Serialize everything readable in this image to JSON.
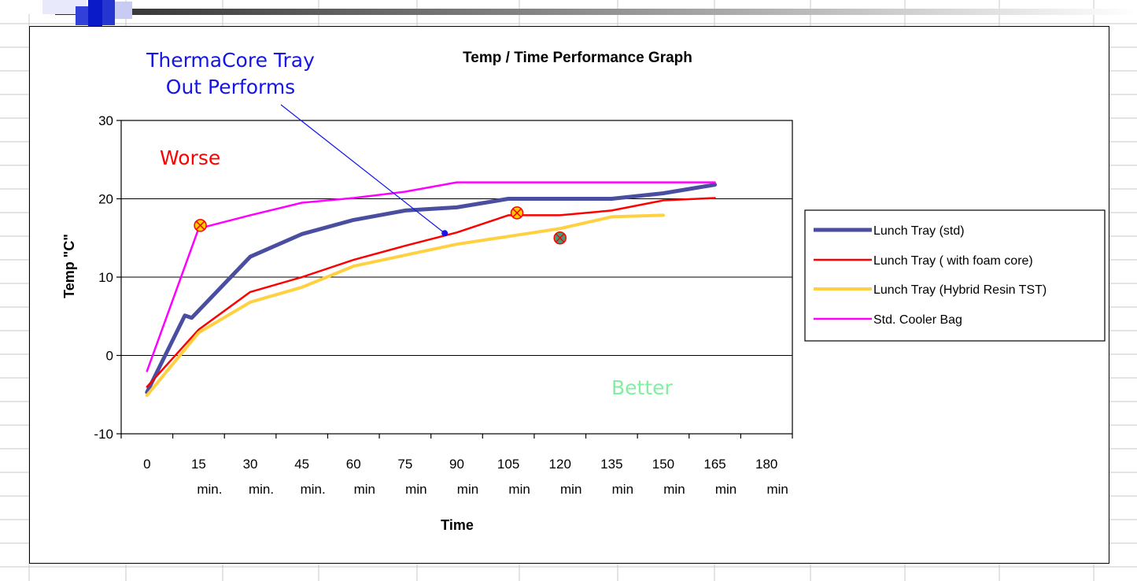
{
  "chart_data": {
    "type": "line",
    "title": "Temp / Time Performance Graph",
    "xlabel": "Time",
    "ylabel": "Temp \"C\"",
    "ylim": [
      -10,
      30
    ],
    "yticks": [
      -10,
      0,
      10,
      20,
      30
    ],
    "grid": "horizontal major gridlines",
    "legend_position": "right",
    "x": [
      0,
      15,
      30,
      45,
      60,
      75,
      90,
      105,
      120,
      135,
      150,
      165,
      180
    ],
    "categories": [
      {
        "line1": "0",
        "line2": ""
      },
      {
        "line1": "15",
        "line2": "min."
      },
      {
        "line1": "30",
        "line2": "min."
      },
      {
        "line1": "45",
        "line2": "min."
      },
      {
        "line1": "60",
        "line2": "min"
      },
      {
        "line1": "75",
        "line2": "min"
      },
      {
        "line1": "90",
        "line2": "min"
      },
      {
        "line1": "105",
        "line2": "min"
      },
      {
        "line1": "120",
        "line2": "min"
      },
      {
        "line1": "135",
        "line2": "min"
      },
      {
        "line1": "150",
        "line2": "min"
      },
      {
        "line1": "165",
        "line2": "min"
      },
      {
        "line1": "180",
        "line2": "min"
      }
    ],
    "series": [
      {
        "name": "Lunch Tray (std)",
        "color": "#4a4ea0",
        "points": [
          [
            0,
            -4.7
          ],
          [
            11,
            5.1
          ],
          [
            13,
            4.8
          ],
          [
            30,
            12.6
          ],
          [
            45,
            15.5
          ],
          [
            60,
            17.3
          ],
          [
            75,
            18.5
          ],
          [
            90,
            18.9
          ],
          [
            105,
            20.0
          ],
          [
            120,
            20.0
          ],
          [
            135,
            20.0
          ],
          [
            150,
            20.7
          ],
          [
            165,
            21.8
          ]
        ]
      },
      {
        "name": "Lunch Tray ( with foam core)",
        "color": "#ff0000",
        "points": [
          [
            0,
            -4.0
          ],
          [
            15,
            3.3
          ],
          [
            30,
            8.1
          ],
          [
            45,
            10.0
          ],
          [
            60,
            12.2
          ],
          [
            75,
            14.0
          ],
          [
            90,
            15.7
          ],
          [
            105,
            17.9
          ],
          [
            120,
            17.9
          ],
          [
            135,
            18.5
          ],
          [
            150,
            19.8
          ],
          [
            165,
            20.1
          ]
        ]
      },
      {
        "name": "Lunch Tray (Hybrid Resin TST)",
        "color": "#ffd040",
        "points": [
          [
            0,
            -5.1
          ],
          [
            15,
            2.9
          ],
          [
            30,
            6.8
          ],
          [
            45,
            8.7
          ],
          [
            60,
            11.4
          ],
          [
            75,
            12.8
          ],
          [
            90,
            14.2
          ],
          [
            105,
            15.2
          ],
          [
            120,
            16.2
          ],
          [
            135,
            17.7
          ],
          [
            150,
            17.9
          ]
        ]
      },
      {
        "name": "Std. Cooler Bag",
        "color": "#ff00ff",
        "points": [
          [
            0,
            -2.0
          ],
          [
            15,
            16.2
          ],
          [
            30,
            17.9
          ],
          [
            45,
            19.5
          ],
          [
            60,
            20.1
          ],
          [
            75,
            20.9
          ],
          [
            90,
            22.1
          ],
          [
            105,
            22.1
          ],
          [
            120,
            22.1
          ],
          [
            135,
            22.1
          ],
          [
            150,
            22.1
          ],
          [
            165,
            22.1
          ]
        ]
      }
    ],
    "markers": [
      {
        "x": 15.5,
        "y": 16.6,
        "fill": "#ffcc00",
        "stroke": "#ff0000"
      },
      {
        "x": 107.5,
        "y": 18.2,
        "fill": "#ffcc00",
        "stroke": "#ff0000"
      },
      {
        "x": 120,
        "y": 15.0,
        "fill": "#3aa07a",
        "stroke": "#ff0000"
      }
    ],
    "callout_point": {
      "x": 86.5,
      "y": 15.6
    },
    "annotations": {
      "callout_line1": "ThermaCore Tray",
      "callout_line2": "Out Performs",
      "worse": "Worse",
      "better": "Better"
    },
    "colors": {
      "callout": "#1515e8",
      "worse": "#ff0000",
      "better": "#80f0a0"
    }
  }
}
